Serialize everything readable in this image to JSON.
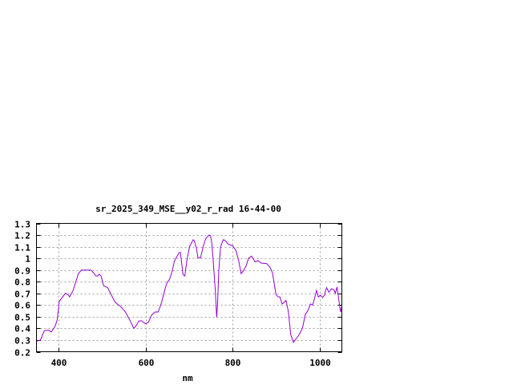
{
  "chart_data": {
    "type": "line",
    "title": "sr_2025_349_MSE__y02_r_rad 16-44-00",
    "xlabel": "nm",
    "ylabel": "",
    "xlim": [
      350,
      1050
    ],
    "ylim": [
      0.2,
      1.3
    ],
    "xticks": [
      400,
      600,
      800,
      1000
    ],
    "xtick_labels": [
      "400",
      "600",
      "800",
      "1000"
    ],
    "yticks": [
      0.2,
      0.3,
      0.4,
      0.5,
      0.6,
      0.7,
      0.8,
      0.9,
      1.0,
      1.1,
      1.2,
      1.3
    ],
    "ytick_labels": [
      "0.2",
      "0.3",
      "0.4",
      "0.5",
      "0.6",
      "0.7",
      "0.8",
      "0.9",
      "1",
      "1.1",
      "1.2",
      "1.3"
    ],
    "grid": true,
    "line_color": "#9400d3",
    "grid_color": "#a0a0a0",
    "series": [
      {
        "x": [
          350,
          359,
          368,
          377,
          384,
          393,
          398,
          402,
          416,
          422,
          426,
          434,
          446,
          453,
          475,
          481,
          486,
          490,
          494,
          498,
          504,
          513,
          530,
          545,
          554,
          564,
          573,
          578,
          585,
          591,
          600,
          607,
          614,
          622,
          629,
          637,
          643,
          649,
          655,
          661,
          666,
          671,
          677,
          680,
          683,
          686,
          690,
          695,
          701,
          709,
          712,
          717,
          720,
          726,
          732,
          738,
          746,
          749,
          752,
          755,
          760,
          763,
          765,
          768,
          772,
          778,
          782,
          790,
          799,
          807,
          813,
          819,
          824,
          831,
          836,
          843,
          851,
          858,
          865,
          878,
          885,
          891,
          894,
          899,
          904,
          908,
          913,
          917,
          922,
          927,
          933,
          939,
          945,
          952,
          960,
          966,
          972,
          978,
          983,
          989,
          992,
          996,
          1001,
          1006,
          1010,
          1015,
          1020,
          1026,
          1032,
          1035,
          1039,
          1043,
          1047,
          1050
        ],
        "y": [
          0.29,
          0.3,
          0.38,
          0.385,
          0.37,
          0.42,
          0.48,
          0.63,
          0.7,
          0.69,
          0.67,
          0.725,
          0.87,
          0.9,
          0.9,
          0.875,
          0.85,
          0.85,
          0.865,
          0.85,
          0.765,
          0.75,
          0.625,
          0.58,
          0.54,
          0.47,
          0.4,
          0.42,
          0.465,
          0.465,
          0.44,
          0.455,
          0.515,
          0.54,
          0.54,
          0.625,
          0.715,
          0.79,
          0.82,
          0.89,
          0.975,
          1.01,
          1.05,
          1.05,
          0.955,
          0.86,
          0.85,
          0.99,
          1.1,
          1.16,
          1.15,
          1.08,
          1.005,
          1.005,
          1.1,
          1.17,
          1.2,
          1.195,
          1.125,
          0.99,
          0.715,
          0.495,
          0.6,
          0.9,
          1.1,
          1.16,
          1.155,
          1.12,
          1.11,
          1.07,
          0.99,
          0.87,
          0.89,
          0.94,
          1.0,
          1.02,
          0.97,
          0.98,
          0.96,
          0.955,
          0.925,
          0.875,
          0.805,
          0.69,
          0.67,
          0.67,
          0.61,
          0.62,
          0.64,
          0.55,
          0.345,
          0.28,
          0.31,
          0.345,
          0.405,
          0.52,
          0.55,
          0.61,
          0.6,
          0.68,
          0.725,
          0.67,
          0.685,
          0.665,
          0.685,
          0.75,
          0.71,
          0.74,
          0.73,
          0.7,
          0.755,
          0.645,
          0.54,
          0.59
        ]
      }
    ]
  }
}
